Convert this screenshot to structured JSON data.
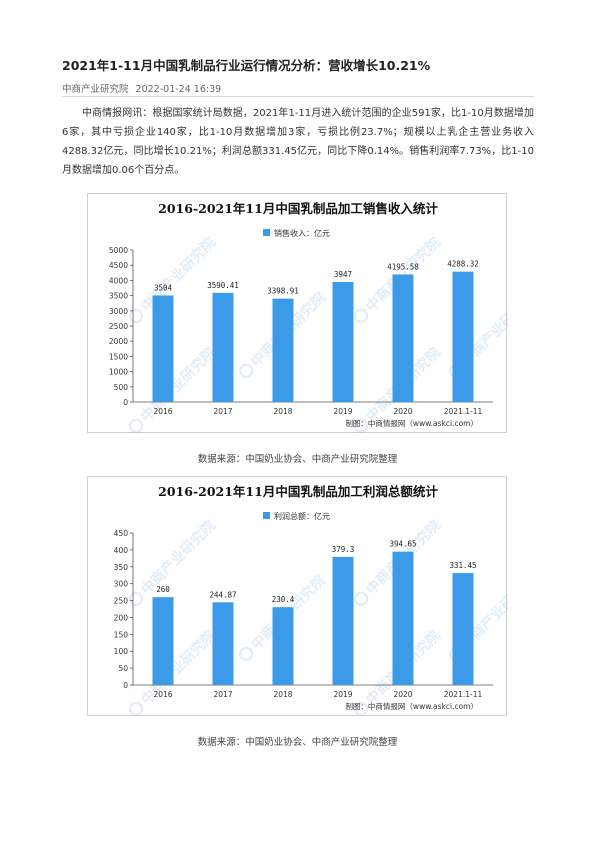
{
  "article": {
    "title": "2021年1-11月中国乳制品行业运行情况分析：营收增长10.21%",
    "source": "中商产业研究院",
    "date": "2022-01-24 16:39",
    "paragraph": "中商情报网讯：根据国家统计局数据，2021年1-11月进入统计范围的企业591家，比1-10月数据增加6家，其中亏损企业140家，比1-10月数据增加3家，亏损比例23.7%；规模以上乳企主营业务收入4288.32亿元，同比增长10.21%；利润总额331.45亿元，同比下降0.14%。销售利润率7.73%，比1-10月数据增加0.06个百分点。"
  },
  "colors": {
    "bar": "#3c9be8",
    "legend": "#3c9be8",
    "watermark": "#7fb2e0"
  },
  "watermark_text": "中商产业研究院",
  "chart_data": [
    {
      "type": "bar",
      "title": "2016-2021年11月中国乳制品加工销售收入统计",
      "legend": [
        "销售收入：亿元"
      ],
      "legend_position": "top",
      "categories": [
        "2016",
        "2017",
        "2018",
        "2019",
        "2020",
        "2021.1-11"
      ],
      "series": [
        {
          "name": "销售收入：亿元",
          "values": [
            3504,
            3590.41,
            3398.91,
            3947,
            4195.58,
            4288.32
          ]
        }
      ],
      "data_labels": [
        "3504",
        "3590.41",
        "3398.91",
        "3947",
        "4195.58",
        "4288.32"
      ],
      "ylim": [
        0,
        5000
      ],
      "yticks": [
        0,
        500,
        1000,
        1500,
        2000,
        2500,
        3000,
        3500,
        4000,
        4500,
        5000
      ],
      "grid": false,
      "credit": "制图：中商情报网（www.askci.com）",
      "caption": "数据来源：中国奶业协会、中商产业研究院整理"
    },
    {
      "type": "bar",
      "title": "2016-2021年11月中国乳制品加工利润总额统计",
      "legend": [
        "利润总额：亿元"
      ],
      "legend_position": "top",
      "categories": [
        "2016",
        "2017",
        "2018",
        "2019",
        "2020",
        "2021.1-11"
      ],
      "series": [
        {
          "name": "利润总额：亿元",
          "values": [
            260,
            244.87,
            230.4,
            379.3,
            394.65,
            331.45
          ]
        }
      ],
      "data_labels": [
        "260",
        "244.87",
        "230.4",
        "379.3",
        "394.65",
        "331.45"
      ],
      "ylim": [
        0,
        450
      ],
      "yticks": [
        0,
        50,
        100,
        150,
        200,
        250,
        300,
        350,
        400,
        450
      ],
      "grid": false,
      "credit": "制图：中商情报网（www.askci.com）",
      "caption": "数据来源：中国奶业协会、中商产业研究院整理"
    }
  ]
}
